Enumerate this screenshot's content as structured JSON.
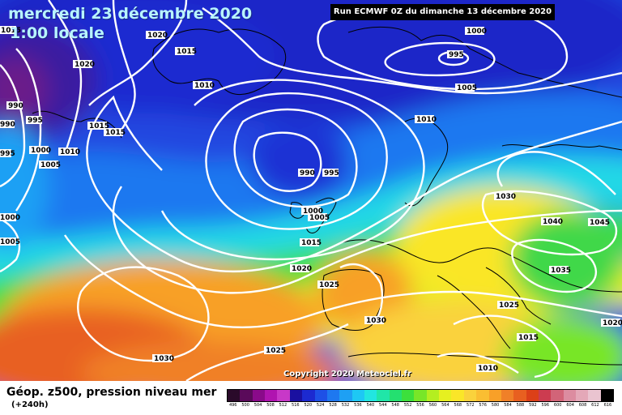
{
  "header": {
    "date": "mercredi 23 décembre 2020",
    "time": "1:00 locale",
    "run": "Run ECMWF 0Z du dimanche 13 décembre 2020"
  },
  "copyright": "Copyright 2020 Meteociel.fr",
  "legend": {
    "title": "Géop. z500, pression niveau mer",
    "subtitle": "(+240h)",
    "scale_values": [
      "496",
      "500",
      "504",
      "508",
      "512",
      "516",
      "520",
      "524",
      "528",
      "532",
      "536",
      "540",
      "544",
      "548",
      "552",
      "556",
      "560",
      "564",
      "568",
      "572",
      "576",
      "580",
      "584",
      "588",
      "592",
      "596",
      "600",
      "604",
      "608",
      "612",
      "616"
    ],
    "scale_colors": [
      "#2a0a2a",
      "#5a0a5a",
      "#8a0a8a",
      "#b014b0",
      "#c838c8",
      "#1a10a0",
      "#1c2ad0",
      "#1e50e6",
      "#1e78f0",
      "#1ea0f4",
      "#1ec8f4",
      "#22e6e0",
      "#20e6a8",
      "#24e070",
      "#3ce03c",
      "#78e628",
      "#b4ee20",
      "#e6f020",
      "#fae628",
      "#fad23c",
      "#fabe32",
      "#f8a028",
      "#f08028",
      "#e86020",
      "#dc4018",
      "#cc3c50",
      "#d26478",
      "#dc8ca0",
      "#e4a8b8",
      "#eac4d0",
      "#000000"
    ]
  },
  "isobars": [
    {
      "value": "1015",
      "context": "top-left corner"
    },
    {
      "value": "1020",
      "context": "Labrador"
    },
    {
      "value": "1015",
      "context": "Greenland south"
    },
    {
      "value": "1020",
      "context": "western Atlantic north"
    },
    {
      "value": "1010",
      "context": "Greenland coast"
    },
    {
      "value": "990",
      "context": "far west low"
    },
    {
      "value": "995",
      "context": "far west low"
    },
    {
      "value": "990",
      "context": "far west edge"
    },
    {
      "value": "1015",
      "context": "mid Atlantic"
    },
    {
      "value": "1015",
      "context": "mid Atlantic"
    },
    {
      "value": "1010",
      "context": "mid Atlantic"
    },
    {
      "value": "1000",
      "context": "mid Atlantic west"
    },
    {
      "value": "1005",
      "context": "mid Atlantic west"
    },
    {
      "value": "995",
      "context": "western edge"
    },
    {
      "value": "1000",
      "context": "western edge"
    },
    {
      "value": "1005",
      "context": "western edge"
    },
    {
      "value": "1000",
      "context": "Iceland-Norway high area"
    },
    {
      "value": "995",
      "context": "Norwegian sea low"
    },
    {
      "value": "1005",
      "context": "Scandinavia"
    },
    {
      "value": "1010",
      "context": "Scandinavia south"
    },
    {
      "value": "990",
      "context": "low north of Scotland"
    },
    {
      "value": "995",
      "context": "low north of Scotland"
    },
    {
      "value": "1000",
      "context": "Ireland"
    },
    {
      "value": "1005",
      "context": "Ireland"
    },
    {
      "value": "1015",
      "context": "Bay of Biscay"
    },
    {
      "value": "1020",
      "context": "Atlantic"
    },
    {
      "value": "1025",
      "context": "Iberia north"
    },
    {
      "value": "1030",
      "context": "central Europe"
    },
    {
      "value": "1040",
      "context": "eastern Europe"
    },
    {
      "value": "1045",
      "context": "eastern edge"
    },
    {
      "value": "1035",
      "context": "Balkans"
    },
    {
      "value": "1025",
      "context": "Greece"
    },
    {
      "value": "1030",
      "context": "Mediterranean west"
    },
    {
      "value": "1015",
      "context": "Eastern Mediterranean"
    },
    {
      "value": "1020",
      "context": "eastern edge south"
    },
    {
      "value": "1010",
      "context": "North Africa east"
    },
    {
      "value": "1030",
      "context": "Azores high"
    },
    {
      "value": "1025",
      "context": "subtropical Atlantic"
    }
  ],
  "colors": {
    "title_text": "#b8f4ff",
    "isobar_line": "#ffffff",
    "coastline": "#000000"
  }
}
